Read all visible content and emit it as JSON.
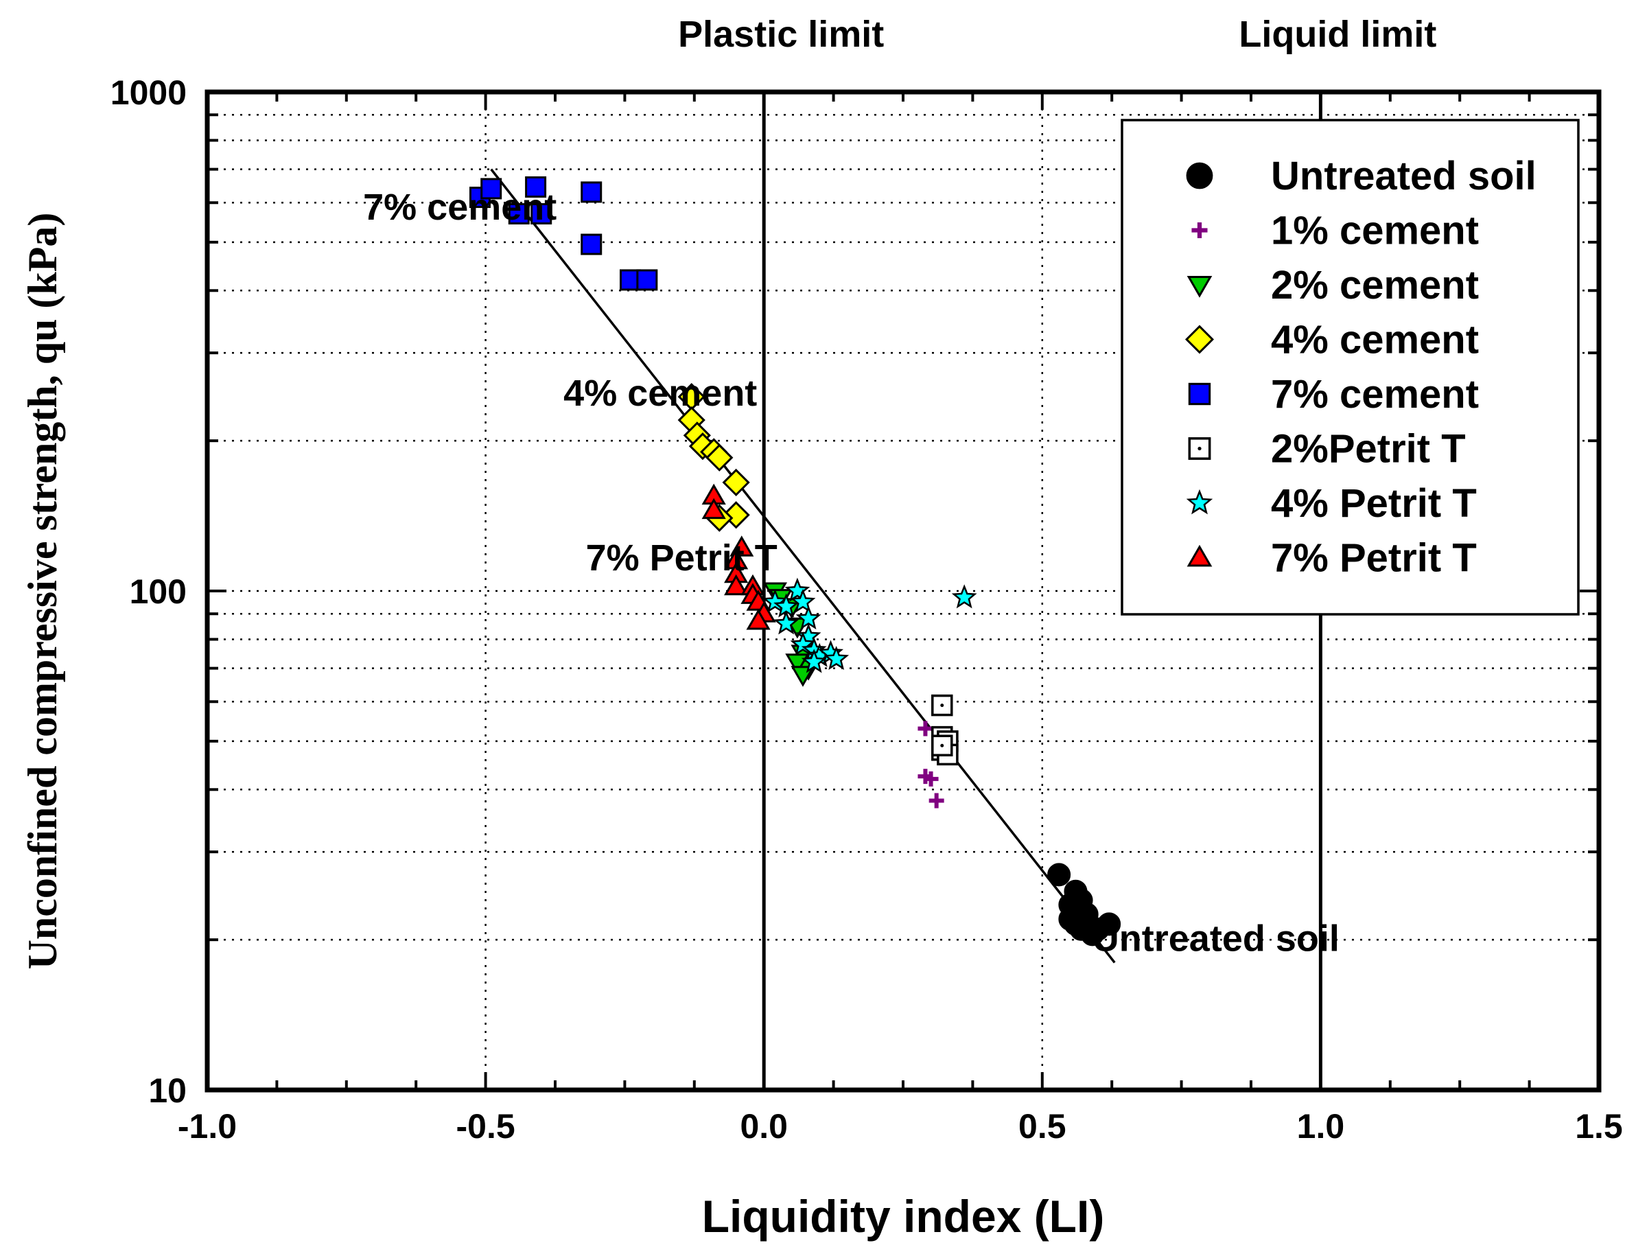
{
  "chart_data": {
    "type": "scatter",
    "title": "",
    "xlabel": "Liquidity index (LI)",
    "ylabel": "Unconfined compressive strength, qu (kPa)",
    "xlim": [
      -1.0,
      1.5
    ],
    "ylim": [
      10,
      1000
    ],
    "yscale": "log",
    "x_ticks": [
      {
        "value": -1.0,
        "label": "-1.0"
      },
      {
        "value": -0.5,
        "label": "-0.5"
      },
      {
        "value": 0.0,
        "label": "0.0"
      },
      {
        "value": 0.5,
        "label": "0.5"
      },
      {
        "value": 1.0,
        "label": "1.0"
      },
      {
        "value": 1.5,
        "label": "1.5"
      }
    ],
    "y_ticks": [
      {
        "value": 10,
        "label": "10"
      },
      {
        "value": 100,
        "label": "100"
      },
      {
        "value": 1000,
        "label": "1000"
      }
    ],
    "grid": true,
    "reference_lines": [
      {
        "x": 0.0,
        "label": "Plastic limit"
      },
      {
        "x": 1.0,
        "label": "Liquid limit"
      }
    ],
    "trend_line": {
      "x": [
        -0.49,
        0.63
      ],
      "y": [
        700,
        18
      ]
    },
    "annotations": [
      {
        "text": "7% cement",
        "x": -0.72,
        "y": 555
      },
      {
        "text": "4% cement",
        "x": -0.36,
        "y": 235
      },
      {
        "text": "7% Petrit T",
        "x": -0.32,
        "y": 110
      },
      {
        "text": "Untreated soil",
        "x": 0.59,
        "y": 19
      }
    ],
    "legend_position": "top-right",
    "series": [
      {
        "name": "Untreated soil",
        "marker": "circle",
        "color": "#000000",
        "x": [
          0.53,
          0.55,
          0.56,
          0.57,
          0.55,
          0.56,
          0.58,
          0.59,
          0.6,
          0.62,
          0.57,
          0.58
        ],
        "y": [
          27,
          23.5,
          25,
          24,
          22,
          21.5,
          22.5,
          20.5,
          21,
          21.5,
          21,
          21.5
        ]
      },
      {
        "name": "1% cement",
        "marker": "plus",
        "color": "#800080",
        "x": [
          0.29,
          0.3,
          0.31,
          0.29
        ],
        "y": [
          53,
          42,
          38,
          42.5
        ]
      },
      {
        "name": "2% cement",
        "marker": "triangle-down",
        "color": "#00cc00",
        "x": [
          0.02,
          0.03,
          0.05,
          0.06,
          0.07,
          0.08,
          0.06,
          0.07
        ],
        "y": [
          100,
          97,
          93,
          85,
          75,
          70,
          72,
          68
        ]
      },
      {
        "name": "4% cement",
        "marker": "diamond",
        "color": "#ffff00",
        "x": [
          -0.13,
          -0.13,
          -0.12,
          -0.11,
          -0.09,
          -0.08,
          -0.05,
          -0.05,
          -0.08
        ],
        "y": [
          245,
          220,
          205,
          195,
          190,
          185,
          165,
          142,
          140
        ]
      },
      {
        "name": "7% cement",
        "marker": "square",
        "color": "#0000ff",
        "x": [
          -0.51,
          -0.49,
          -0.44,
          -0.41,
          -0.4,
          -0.31,
          -0.31,
          -0.24,
          -0.21
        ],
        "y": [
          615,
          640,
          570,
          645,
          570,
          630,
          495,
          420,
          420
        ]
      },
      {
        "name": "2%Petrit T",
        "marker": "square-open",
        "color": "#000000",
        "x": [
          0.32,
          0.32,
          0.33,
          0.32,
          0.33,
          0.32
        ],
        "y": [
          59,
          51,
          50,
          48,
          47,
          49
        ]
      },
      {
        "name": "4% Petrit T",
        "marker": "star",
        "color": "#00ffff",
        "x": [
          0.02,
          0.04,
          0.06,
          0.07,
          0.08,
          0.04,
          0.08,
          0.07,
          0.09,
          0.1,
          0.12,
          0.13,
          0.09,
          0.36
        ],
        "y": [
          95,
          93,
          100,
          95,
          88,
          86,
          81,
          78,
          76,
          74,
          75,
          73,
          72,
          97
        ]
      },
      {
        "name": "7% Petrit T",
        "marker": "triangle-up",
        "color": "#ff0000",
        "x": [
          -0.09,
          -0.09,
          -0.04,
          -0.05,
          -0.05,
          -0.05,
          -0.02,
          -0.02,
          -0.01,
          0.0,
          -0.01
        ],
        "y": [
          155,
          145,
          122,
          115,
          108,
          102,
          102,
          98,
          95,
          90,
          87
        ]
      }
    ]
  }
}
